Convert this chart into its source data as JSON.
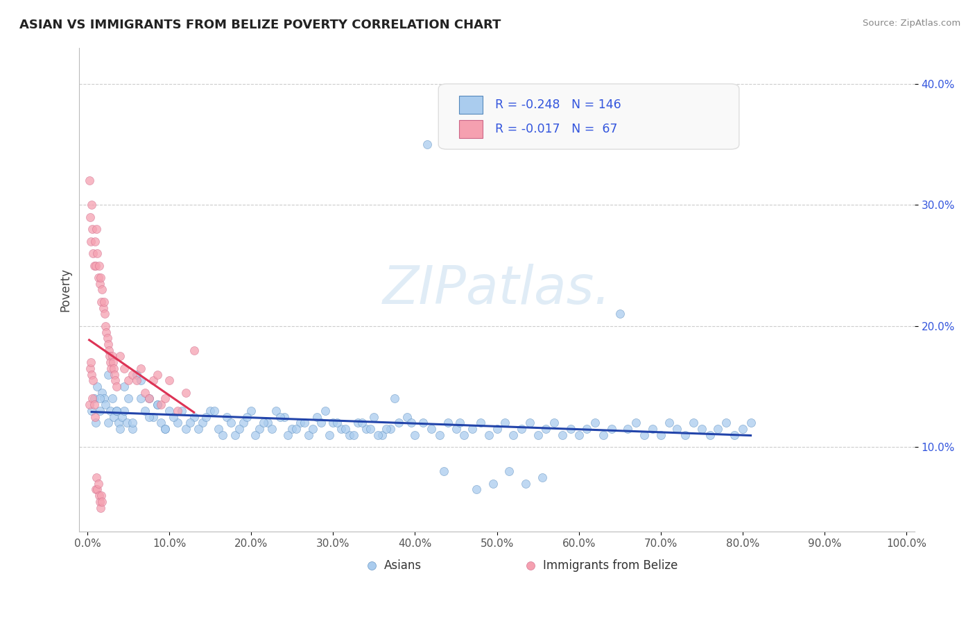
{
  "title": "ASIAN VS IMMIGRANTS FROM BELIZE POVERTY CORRELATION CHART",
  "source_text": "Source: ZipAtlas.com",
  "ylabel": "Poverty",
  "xlim": [
    -0.01,
    1.01
  ],
  "ylim": [
    0.03,
    0.43
  ],
  "xticks": [
    0.0,
    0.1,
    0.2,
    0.3,
    0.4,
    0.5,
    0.6,
    0.7,
    0.8,
    0.9,
    1.0
  ],
  "yticks": [
    0.1,
    0.2,
    0.3,
    0.4
  ],
  "series": [
    {
      "name": "Asians",
      "color": "#aaccee",
      "edge_color": "#5588bb",
      "R": -0.248,
      "N": 146,
      "trend_color": "#2244aa",
      "x": [
        0.005,
        0.008,
        0.01,
        0.012,
        0.015,
        0.018,
        0.02,
        0.022,
        0.025,
        0.028,
        0.03,
        0.032,
        0.035,
        0.038,
        0.04,
        0.042,
        0.045,
        0.048,
        0.05,
        0.055,
        0.06,
        0.065,
        0.07,
        0.075,
        0.08,
        0.085,
        0.09,
        0.095,
        0.1,
        0.11,
        0.12,
        0.13,
        0.14,
        0.15,
        0.16,
        0.17,
        0.18,
        0.19,
        0.2,
        0.21,
        0.22,
        0.23,
        0.24,
        0.25,
        0.26,
        0.27,
        0.28,
        0.29,
        0.3,
        0.31,
        0.32,
        0.33,
        0.34,
        0.35,
        0.36,
        0.37,
        0.38,
        0.39,
        0.4,
        0.41,
        0.42,
        0.43,
        0.44,
        0.45,
        0.46,
        0.47,
        0.48,
        0.49,
        0.5,
        0.51,
        0.52,
        0.53,
        0.54,
        0.55,
        0.56,
        0.57,
        0.58,
        0.59,
        0.6,
        0.61,
        0.62,
        0.63,
        0.64,
        0.65,
        0.66,
        0.67,
        0.68,
        0.69,
        0.7,
        0.71,
        0.72,
        0.73,
        0.74,
        0.75,
        0.76,
        0.77,
        0.78,
        0.79,
        0.8,
        0.81,
        0.015,
        0.025,
        0.035,
        0.045,
        0.055,
        0.065,
        0.075,
        0.085,
        0.095,
        0.105,
        0.115,
        0.125,
        0.135,
        0.145,
        0.155,
        0.165,
        0.175,
        0.185,
        0.195,
        0.205,
        0.215,
        0.225,
        0.235,
        0.245,
        0.255,
        0.265,
        0.275,
        0.285,
        0.295,
        0.305,
        0.315,
        0.325,
        0.335,
        0.345,
        0.355,
        0.365,
        0.375,
        0.395,
        0.415,
        0.435,
        0.455,
        0.475,
        0.495,
        0.515,
        0.535,
        0.555
      ],
      "y": [
        0.13,
        0.14,
        0.12,
        0.15,
        0.13,
        0.145,
        0.14,
        0.135,
        0.12,
        0.13,
        0.14,
        0.125,
        0.13,
        0.12,
        0.115,
        0.125,
        0.13,
        0.12,
        0.14,
        0.115,
        0.16,
        0.155,
        0.13,
        0.14,
        0.125,
        0.135,
        0.12,
        0.115,
        0.13,
        0.12,
        0.115,
        0.125,
        0.12,
        0.13,
        0.115,
        0.125,
        0.11,
        0.12,
        0.13,
        0.115,
        0.12,
        0.13,
        0.125,
        0.115,
        0.12,
        0.11,
        0.125,
        0.13,
        0.12,
        0.115,
        0.11,
        0.12,
        0.115,
        0.125,
        0.11,
        0.115,
        0.12,
        0.125,
        0.11,
        0.12,
        0.115,
        0.11,
        0.12,
        0.115,
        0.11,
        0.115,
        0.12,
        0.11,
        0.115,
        0.12,
        0.11,
        0.115,
        0.12,
        0.11,
        0.115,
        0.12,
        0.11,
        0.115,
        0.11,
        0.115,
        0.12,
        0.11,
        0.115,
        0.21,
        0.115,
        0.12,
        0.11,
        0.115,
        0.11,
        0.12,
        0.115,
        0.11,
        0.12,
        0.115,
        0.11,
        0.115,
        0.12,
        0.11,
        0.115,
        0.12,
        0.14,
        0.16,
        0.13,
        0.15,
        0.12,
        0.14,
        0.125,
        0.135,
        0.115,
        0.125,
        0.13,
        0.12,
        0.115,
        0.125,
        0.13,
        0.11,
        0.12,
        0.115,
        0.125,
        0.11,
        0.12,
        0.115,
        0.125,
        0.11,
        0.115,
        0.12,
        0.115,
        0.12,
        0.11,
        0.12,
        0.115,
        0.11,
        0.12,
        0.115,
        0.11,
        0.115,
        0.14,
        0.12,
        0.35,
        0.08,
        0.12,
        0.065,
        0.07,
        0.08,
        0.07,
        0.075
      ]
    },
    {
      "name": "Immigrants from Belize",
      "color": "#f5a0b0",
      "edge_color": "#cc6688",
      "R": -0.017,
      "N": 67,
      "trend_color": "#dd3355",
      "x": [
        0.002,
        0.003,
        0.004,
        0.005,
        0.006,
        0.007,
        0.008,
        0.009,
        0.01,
        0.011,
        0.012,
        0.013,
        0.014,
        0.015,
        0.016,
        0.017,
        0.018,
        0.019,
        0.02,
        0.021,
        0.022,
        0.023,
        0.024,
        0.025,
        0.026,
        0.027,
        0.028,
        0.029,
        0.03,
        0.031,
        0.032,
        0.033,
        0.034,
        0.035,
        0.04,
        0.045,
        0.05,
        0.055,
        0.06,
        0.065,
        0.07,
        0.075,
        0.08,
        0.085,
        0.09,
        0.095,
        0.1,
        0.11,
        0.12,
        0.13,
        0.002,
        0.003,
        0.004,
        0.005,
        0.006,
        0.007,
        0.008,
        0.009,
        0.01,
        0.011,
        0.012,
        0.013,
        0.014,
        0.015,
        0.016,
        0.017,
        0.018
      ],
      "y": [
        0.32,
        0.29,
        0.27,
        0.3,
        0.28,
        0.26,
        0.25,
        0.27,
        0.25,
        0.28,
        0.26,
        0.24,
        0.25,
        0.235,
        0.24,
        0.22,
        0.23,
        0.215,
        0.22,
        0.21,
        0.2,
        0.195,
        0.19,
        0.185,
        0.18,
        0.175,
        0.17,
        0.165,
        0.175,
        0.17,
        0.165,
        0.16,
        0.155,
        0.15,
        0.175,
        0.165,
        0.155,
        0.16,
        0.155,
        0.165,
        0.145,
        0.14,
        0.155,
        0.16,
        0.135,
        0.14,
        0.155,
        0.13,
        0.145,
        0.18,
        0.135,
        0.165,
        0.17,
        0.16,
        0.14,
        0.155,
        0.135,
        0.125,
        0.065,
        0.075,
        0.065,
        0.07,
        0.06,
        0.055,
        0.05,
        0.06,
        0.055
      ]
    }
  ],
  "watermark": "ZIPatlas.",
  "background_color": "#ffffff",
  "grid_color": "#cccccc",
  "title_fontsize": 13,
  "axis_label_fontsize": 12,
  "tick_fontsize": 11,
  "legend_color": "#3355dd"
}
